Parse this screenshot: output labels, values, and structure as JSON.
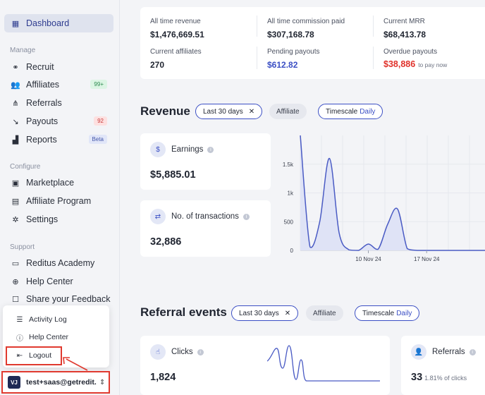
{
  "sidebar": {
    "dashboard": "Dashboard",
    "sections": {
      "manage": "Manage",
      "configure": "Configure",
      "support": "Support"
    },
    "manage_items": [
      {
        "label": "Recruit",
        "icon": "binoculars-icon"
      },
      {
        "label": "Affiliates",
        "icon": "users-icon",
        "badge": "99+"
      },
      {
        "label": "Referrals",
        "icon": "referral-icon"
      },
      {
        "label": "Payouts",
        "icon": "payout-icon",
        "badge": "92"
      },
      {
        "label": "Reports",
        "icon": "chart-icon",
        "badge": "Beta"
      }
    ],
    "configure_items": [
      {
        "label": "Marketplace",
        "icon": "store-icon"
      },
      {
        "label": "Affiliate Program",
        "icon": "document-icon"
      },
      {
        "label": "Settings",
        "icon": "gear-icon"
      }
    ],
    "support_items": [
      {
        "label": "Reditus Academy",
        "icon": "academy-icon"
      },
      {
        "label": "Help Center",
        "icon": "globe-icon"
      },
      {
        "label": "Share your Feedback",
        "icon": "feedback-icon"
      }
    ]
  },
  "popup": {
    "items": [
      "Activity Log",
      "Help Center",
      "Logout"
    ]
  },
  "account": {
    "initials": "VJ",
    "email": "test+saas@getredit..."
  },
  "stats": {
    "all_time_revenue": {
      "label": "All time revenue",
      "value": "$1,476,669.51"
    },
    "commission_paid": {
      "label": "All time commission paid",
      "value": "$307,168.78"
    },
    "current_mrr": {
      "label": "Current MRR",
      "value": "$68,413.78"
    },
    "current_affiliates": {
      "label": "Current affiliates",
      "value": "270"
    },
    "pending_payouts": {
      "label": "Pending payouts",
      "value": "$612.82"
    },
    "overdue_payouts": {
      "label": "Overdue payouts",
      "value": "$38,886",
      "sub": "to pay now"
    }
  },
  "revenue": {
    "title": "Revenue",
    "filter": "Last 30 days",
    "affiliate": "Affiliate",
    "timescale_label": "Timescale",
    "timescale_value": "Daily",
    "earnings_label": "Earnings",
    "earnings_value": "$5,885.01",
    "transactions_label": "No. of transactions",
    "transactions_value": "32,886"
  },
  "referral_events": {
    "title": "Referral events",
    "filter": "Last 30 days",
    "affiliate": "Affiliate",
    "timescale_label": "Timescale",
    "timescale_value": "Daily",
    "clicks_label": "Clicks",
    "clicks_value": "1,824",
    "referrals_label": "Referrals",
    "referrals_value": "33",
    "referrals_sub": "1.81% of clicks"
  },
  "chart_data": {
    "type": "area",
    "y_ticks": [
      "0",
      "500",
      "1k",
      "1.5k"
    ],
    "x_ticks": [
      "10 Nov 24",
      "17 Nov 24"
    ],
    "ylim": [
      0,
      2000
    ],
    "x": [
      0,
      1,
      2,
      3,
      4,
      5,
      6,
      7,
      8,
      9,
      10,
      11,
      12,
      13,
      14,
      15,
      16,
      17,
      18,
      19
    ],
    "values": [
      2000,
      60,
      500,
      1600,
      300,
      10,
      0,
      110,
      20,
      460,
      720,
      30,
      0,
      0,
      0,
      0,
      0,
      0,
      0,
      0
    ],
    "series_color": "#4a5bc4",
    "grid": true
  }
}
